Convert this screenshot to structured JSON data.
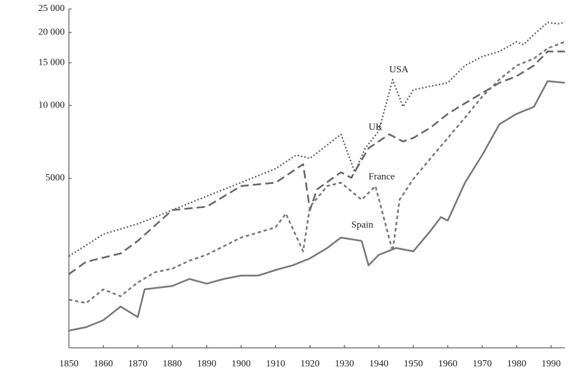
{
  "chart_data": {
    "type": "line",
    "log_y": true,
    "xlim": [
      1850,
      1994
    ],
    "xticks": [
      1850,
      1860,
      1870,
      1880,
      1890,
      1900,
      1910,
      1920,
      1930,
      1940,
      1950,
      1960,
      1970,
      1980,
      1990
    ],
    "ylim": [
      1000,
      25000
    ],
    "yticks": [
      {
        "value": 25000,
        "label": "25 000"
      },
      {
        "value": 20000,
        "label": "20 000"
      },
      {
        "value": 15000,
        "label": "15 000"
      },
      {
        "value": 10000,
        "label": "10 000"
      },
      5000
    ],
    "series": [
      {
        "name": "USA",
        "color": "#555555",
        "style": "dotted",
        "x": [
          1850,
          1860,
          1870,
          1875,
          1880,
          1890,
          1900,
          1910,
          1916,
          1920,
          1929,
          1933,
          1936,
          1940,
          1944,
          1947,
          1950,
          1955,
          1960,
          1965,
          1970,
          1975,
          1980,
          1982,
          1985,
          1989,
          1992,
          1994
        ],
        "values": [
          2387,
          2943,
          3246,
          3460,
          3700,
          4217,
          4808,
          5480,
          6240,
          6050,
          7600,
          5300,
          6650,
          7850,
          12780,
          9880,
          11600,
          12000,
          12400,
          14600,
          15900,
          16700,
          18300,
          17800,
          19600,
          22000,
          21700,
          22000
        ]
      },
      {
        "name": "UK",
        "color": "#666666",
        "style": "dashed",
        "x": [
          1850,
          1855,
          1865,
          1870,
          1880,
          1890,
          1900,
          1910,
          1913,
          1918,
          1920,
          1922,
          1929,
          1932,
          1937,
          1943,
          1947,
          1950,
          1955,
          1960,
          1965,
          1970,
          1975,
          1980,
          1985,
          1989,
          1994
        ],
        "values": [
          2014,
          2264,
          2450,
          2760,
          3700,
          3820,
          4650,
          4800,
          5120,
          5720,
          3700,
          4500,
          5300,
          5030,
          6660,
          7600,
          7100,
          7340,
          8100,
          9230,
          10200,
          11250,
          12400,
          13200,
          14600,
          16700,
          16700
        ]
      },
      {
        "name": "France",
        "color": "#777777",
        "style": "short-dashed",
        "x": [
          1850,
          1855,
          1860,
          1865,
          1870,
          1875,
          1880,
          1885,
          1890,
          1900,
          1910,
          1913,
          1918,
          1920,
          1925,
          1929,
          1935,
          1939,
          1944,
          1946,
          1950,
          1955,
          1960,
          1965,
          1970,
          1975,
          1980,
          1985,
          1989,
          1994
        ],
        "values": [
          1580,
          1530,
          1743,
          1632,
          1860,
          2050,
          2120,
          2290,
          2420,
          2850,
          3140,
          3580,
          2500,
          3820,
          4650,
          4800,
          4080,
          4650,
          2500,
          4080,
          4970,
          6050,
          7340,
          8900,
          10880,
          12800,
          14600,
          15600,
          17200,
          18300
        ]
      },
      {
        "name": "Spain",
        "color": "#777777",
        "style": "solid",
        "x": [
          1850,
          1855,
          1860,
          1865,
          1870,
          1872,
          1880,
          1885,
          1890,
          1895,
          1900,
          1905,
          1910,
          1915,
          1920,
          1925,
          1929,
          1935,
          1937,
          1940,
          1945,
          1950,
          1955,
          1958,
          1960,
          1965,
          1970,
          1975,
          1980,
          1985,
          1989,
          1994
        ],
        "values": [
          1178,
          1217,
          1300,
          1480,
          1340,
          1744,
          1800,
          1924,
          1840,
          1924,
          1987,
          1987,
          2095,
          2190,
          2340,
          2580,
          2850,
          2760,
          2190,
          2420,
          2580,
          2500,
          3040,
          3460,
          3350,
          4800,
          6240,
          8370,
          9230,
          9870,
          12600,
          12400
        ]
      }
    ]
  }
}
